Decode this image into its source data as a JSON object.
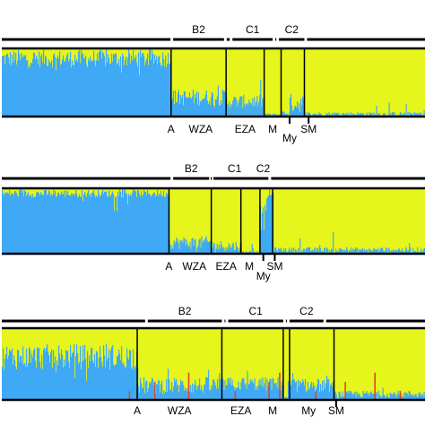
{
  "colors": {
    "blue": "#3fa9f5",
    "yellow": "#e6f51b",
    "red": "#e0452b",
    "frame": "#000000"
  },
  "chart_data": [
    {
      "type": "bar",
      "stacked": true,
      "panel": "top",
      "series": [
        {
          "name": "",
          "color": "blue"
        },
        {
          "name": "",
          "color": "yellow"
        }
      ],
      "blocks": [
        {
          "key": "A",
          "from": 0.0,
          "to": 0.4,
          "blue_mean": 0.85,
          "blue_noise": 0.13
        },
        {
          "key": "WZA",
          "from": 0.4,
          "to": 0.53,
          "blue_mean": 0.28,
          "blue_noise": 0.12
        },
        {
          "key": "EZA",
          "from": 0.53,
          "to": 0.62,
          "blue_mean": 0.22,
          "blue_noise": 0.1
        },
        {
          "key": "M",
          "from": 0.62,
          "to": 0.66,
          "blue_mean": 0.03,
          "blue_noise": 0.02
        },
        {
          "key": "My",
          "from": 0.66,
          "to": 0.68,
          "blue_mean": 0.05,
          "blue_noise": 0.04
        },
        {
          "key": "MyB",
          "from": 0.68,
          "to": 0.715,
          "blue_mean": 0.2,
          "blue_noise": 0.14
        },
        {
          "key": "SM",
          "from": 0.715,
          "to": 1.0,
          "blue_mean": 0.04,
          "blue_noise": 0.03
        }
      ],
      "separators": [
        0.4,
        0.53,
        0.62,
        0.66,
        0.715
      ],
      "group_brackets": [
        {
          "label": "B2",
          "from": 0.405,
          "to": 0.525
        },
        {
          "label": "C1",
          "from": 0.545,
          "to": 0.64
        },
        {
          "label": "C2",
          "from": 0.655,
          "to": 0.715
        }
      ],
      "pop_labels": [
        {
          "label": "A",
          "at": 0.4
        },
        {
          "label": "WZA",
          "at": 0.47
        },
        {
          "label": "EZA",
          "at": 0.575
        },
        {
          "label": "M",
          "at": 0.64
        },
        {
          "label": "My",
          "at": 0.68,
          "tick": true,
          "second_row": true
        },
        {
          "label": "SM",
          "at": 0.725,
          "tick": true
        }
      ]
    },
    {
      "type": "bar",
      "stacked": true,
      "panel": "middle",
      "series": [
        {
          "name": "",
          "color": "blue"
        },
        {
          "name": "",
          "color": "yellow"
        }
      ],
      "blocks": [
        {
          "key": "A",
          "from": 0.0,
          "to": 0.395,
          "blue_mean": 0.92,
          "blue_noise": 0.06
        },
        {
          "key": "WZA",
          "from": 0.395,
          "to": 0.495,
          "blue_mean": 0.17,
          "blue_noise": 0.1
        },
        {
          "key": "EZA",
          "from": 0.495,
          "to": 0.565,
          "blue_mean": 0.12,
          "blue_noise": 0.08
        },
        {
          "key": "M",
          "from": 0.565,
          "to": 0.61,
          "blue_mean": 0.03,
          "blue_noise": 0.02
        },
        {
          "key": "My",
          "from": 0.61,
          "to": 0.625,
          "blue_mean": 0.55,
          "blue_noise": 0.2
        },
        {
          "key": "MyB",
          "from": 0.625,
          "to": 0.64,
          "blue_mean": 0.9,
          "blue_noise": 0.08
        },
        {
          "key": "SM",
          "from": 0.64,
          "to": 1.0,
          "blue_mean": 0.06,
          "blue_noise": 0.04
        }
      ],
      "separators": [
        0.395,
        0.495,
        0.565,
        0.61,
        0.64
      ],
      "group_brackets": [
        {
          "label": "B2",
          "from": 0.405,
          "to": 0.49
        },
        {
          "label": "C1",
          "from": 0.5,
          "to": 0.6
        },
        {
          "label": "C2",
          "from": 0.605,
          "to": 0.63
        }
      ],
      "pop_labels": [
        {
          "label": "A",
          "at": 0.395
        },
        {
          "label": "WZA",
          "at": 0.455
        },
        {
          "label": "EZA",
          "at": 0.53
        },
        {
          "label": "M",
          "at": 0.585
        },
        {
          "label": "My",
          "at": 0.618,
          "tick": true,
          "second_row": true
        },
        {
          "label": "SM",
          "at": 0.645,
          "tick": true
        }
      ]
    },
    {
      "type": "bar",
      "stacked": true,
      "panel": "bottom",
      "series": [
        {
          "name": "",
          "color": "blue"
        },
        {
          "name": "",
          "color": "yellow"
        },
        {
          "name": "",
          "color": "red"
        }
      ],
      "blocks": [
        {
          "key": "A",
          "from": 0.0,
          "to": 0.32,
          "blue_mean": 0.6,
          "blue_noise": 0.18
        },
        {
          "key": "WZA",
          "from": 0.32,
          "to": 0.52,
          "blue_mean": 0.2,
          "blue_noise": 0.12
        },
        {
          "key": "EZA",
          "from": 0.52,
          "to": 0.665,
          "blue_mean": 0.22,
          "blue_noise": 0.1
        },
        {
          "key": "M",
          "from": 0.665,
          "to": 0.68,
          "blue_mean": 0.03,
          "blue_noise": 0.02
        },
        {
          "key": "My",
          "from": 0.68,
          "to": 0.785,
          "blue_mean": 0.2,
          "blue_noise": 0.1
        },
        {
          "key": "SM",
          "from": 0.785,
          "to": 1.0,
          "blue_mean": 0.08,
          "blue_noise": 0.05
        }
      ],
      "red_spikes": [
        0.3,
        0.36,
        0.44,
        0.55,
        0.63,
        0.655,
        0.74,
        0.81,
        0.88,
        0.94
      ],
      "separators": [
        0.32,
        0.52,
        0.665,
        0.68,
        0.785
      ],
      "group_brackets": [
        {
          "label": "B2",
          "from": 0.345,
          "to": 0.52
        },
        {
          "label": "C1",
          "from": 0.535,
          "to": 0.665
        },
        {
          "label": "C2",
          "from": 0.68,
          "to": 0.76
        }
      ],
      "pop_labels": [
        {
          "label": "A",
          "at": 0.32
        },
        {
          "label": "WZA",
          "at": 0.42
        },
        {
          "label": "EZA",
          "at": 0.565
        },
        {
          "label": "M",
          "at": 0.64
        },
        {
          "label": "My",
          "at": 0.725
        },
        {
          "label": "SM",
          "at": 0.79,
          "tick": true
        }
      ]
    }
  ]
}
